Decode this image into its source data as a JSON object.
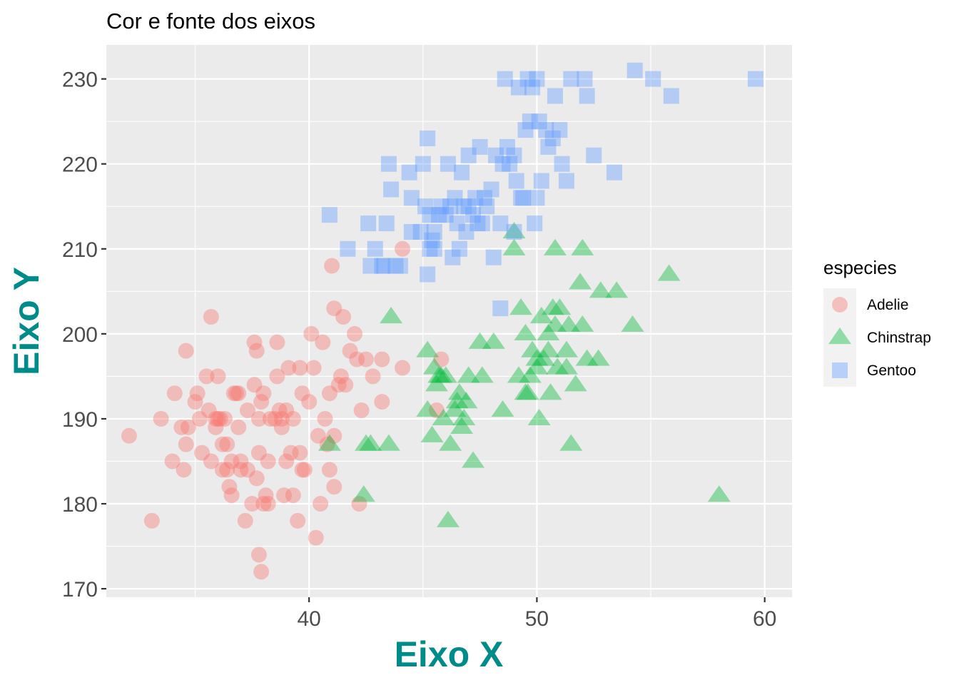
{
  "chart_data": {
    "type": "scatter",
    "title": "Cor e fonte dos eixos",
    "xlabel": "Eixo X",
    "ylabel": "Eixo Y",
    "axis_title_color": "#008B8B",
    "xlim": [
      31.1,
      61.2
    ],
    "ylim": [
      169,
      234
    ],
    "x_ticks": [
      40,
      50,
      60
    ],
    "y_ticks": [
      170,
      180,
      190,
      200,
      210,
      220,
      230
    ],
    "grid": true,
    "legend": {
      "title": "especies",
      "position": "right"
    },
    "series": [
      {
        "name": "Adelie",
        "shape": "circle",
        "color": "#F8766D",
        "points": [
          [
            32.1,
            188
          ],
          [
            33.1,
            178
          ],
          [
            33.5,
            190
          ],
          [
            34.0,
            185
          ],
          [
            34.1,
            193
          ],
          [
            34.5,
            184
          ],
          [
            34.6,
            187
          ],
          [
            34.6,
            198
          ],
          [
            34.7,
            189
          ],
          [
            35.0,
            192
          ],
          [
            35.1,
            193
          ],
          [
            35.2,
            190
          ],
          [
            35.3,
            186
          ],
          [
            35.5,
            195
          ],
          [
            35.6,
            191
          ],
          [
            35.7,
            202
          ],
          [
            35.7,
            185
          ],
          [
            35.9,
            189
          ],
          [
            36.0,
            195
          ],
          [
            36.0,
            190
          ],
          [
            36.2,
            187
          ],
          [
            36.2,
            184
          ],
          [
            36.3,
            190
          ],
          [
            36.4,
            184
          ],
          [
            36.5,
            182
          ],
          [
            36.6,
            185
          ],
          [
            36.6,
            181
          ],
          [
            36.7,
            193
          ],
          [
            36.8,
            193
          ],
          [
            36.9,
            189
          ],
          [
            37.0,
            185
          ],
          [
            37.2,
            178
          ],
          [
            37.3,
            191
          ],
          [
            37.3,
            184
          ],
          [
            37.5,
            180
          ],
          [
            37.6,
            199
          ],
          [
            37.6,
            194
          ],
          [
            37.7,
            183
          ],
          [
            37.7,
            198
          ],
          [
            37.8,
            190
          ],
          [
            37.8,
            174
          ],
          [
            37.9,
            172
          ],
          [
            38.0,
            193
          ],
          [
            38.1,
            181
          ],
          [
            38.2,
            185
          ],
          [
            38.3,
            190
          ],
          [
            38.5,
            190
          ],
          [
            38.6,
            199
          ],
          [
            38.7,
            191
          ],
          [
            38.8,
            190
          ],
          [
            38.9,
            181
          ],
          [
            39.0,
            185
          ],
          [
            39.1,
            196
          ],
          [
            39.2,
            186
          ],
          [
            39.3,
            190
          ],
          [
            39.5,
            178
          ],
          [
            39.6,
            186
          ],
          [
            39.7,
            193
          ],
          [
            39.8,
            184
          ],
          [
            40.0,
            192
          ],
          [
            40.2,
            196
          ],
          [
            40.3,
            176
          ],
          [
            40.5,
            180
          ],
          [
            40.6,
            199
          ],
          [
            40.8,
            187
          ],
          [
            40.9,
            184
          ],
          [
            41.0,
            208
          ],
          [
            41.1,
            182
          ],
          [
            41.1,
            203
          ],
          [
            41.3,
            194
          ],
          [
            41.5,
            202
          ],
          [
            41.8,
            198
          ],
          [
            42.0,
            200
          ],
          [
            42.2,
            180
          ],
          [
            42.3,
            191
          ],
          [
            42.5,
            197
          ],
          [
            42.8,
            195
          ],
          [
            43.2,
            197
          ],
          [
            43.2,
            192
          ],
          [
            44.1,
            196
          ],
          [
            44.1,
            210
          ],
          [
            45.6,
            191
          ],
          [
            45.8,
            197
          ],
          [
            41.4,
            195
          ],
          [
            40.1,
            200
          ],
          [
            39.6,
            196
          ],
          [
            38.8,
            189
          ],
          [
            37.9,
            192
          ],
          [
            36.9,
            193
          ],
          [
            35.9,
            190
          ],
          [
            34.4,
            189
          ],
          [
            39.0,
            191
          ],
          [
            40.7,
            190
          ],
          [
            41.1,
            188
          ],
          [
            42.1,
            197
          ],
          [
            37.0,
            184
          ],
          [
            38.2,
            180
          ],
          [
            39.3,
            181
          ],
          [
            40.4,
            188
          ],
          [
            41.6,
            194
          ],
          [
            36.4,
            187
          ],
          [
            37.8,
            186
          ],
          [
            38.6,
            195
          ],
          [
            39.7,
            184
          ],
          [
            38.0,
            180
          ],
          [
            36.1,
            190
          ],
          [
            40.9,
            193
          ]
        ]
      },
      {
        "name": "Chinstrap",
        "shape": "triangle",
        "color": "#00BA38",
        "points": [
          [
            40.9,
            187
          ],
          [
            42.4,
            181
          ],
          [
            42.5,
            187
          ],
          [
            42.7,
            187
          ],
          [
            43.5,
            187
          ],
          [
            43.6,
            202
          ],
          [
            45.2,
            198
          ],
          [
            45.2,
            191
          ],
          [
            45.4,
            188
          ],
          [
            45.5,
            196
          ],
          [
            45.6,
            194
          ],
          [
            45.7,
            195
          ],
          [
            45.9,
            190
          ],
          [
            46.1,
            178
          ],
          [
            46.2,
            187
          ],
          [
            46.4,
            191
          ],
          [
            46.6,
            193
          ],
          [
            46.8,
            190
          ],
          [
            46.9,
            192
          ],
          [
            47.0,
            195
          ],
          [
            47.2,
            185
          ],
          [
            47.5,
            199
          ],
          [
            47.6,
            195
          ],
          [
            48.1,
            199
          ],
          [
            48.5,
            191
          ],
          [
            49.0,
            212
          ],
          [
            49.0,
            210
          ],
          [
            49.2,
            195
          ],
          [
            49.3,
            203
          ],
          [
            49.5,
            200
          ],
          [
            49.6,
            193
          ],
          [
            49.7,
            195
          ],
          [
            49.8,
            198
          ],
          [
            50.0,
            196
          ],
          [
            50.1,
            190
          ],
          [
            50.2,
            202
          ],
          [
            50.3,
            197
          ],
          [
            50.5,
            200
          ],
          [
            50.6,
            193
          ],
          [
            50.7,
            203
          ],
          [
            50.8,
            201
          ],
          [
            50.9,
            196
          ],
          [
            51.0,
            203
          ],
          [
            51.3,
            198
          ],
          [
            51.4,
            201
          ],
          [
            51.5,
            187
          ],
          [
            51.7,
            194
          ],
          [
            52.0,
            210
          ],
          [
            52.0,
            201
          ],
          [
            52.2,
            197
          ],
          [
            52.7,
            197
          ],
          [
            52.8,
            205
          ],
          [
            53.5,
            205
          ],
          [
            54.2,
            201
          ],
          [
            55.8,
            207
          ],
          [
            58.0,
            181
          ],
          [
            50.8,
            210
          ],
          [
            50.5,
            198
          ],
          [
            51.9,
            206
          ],
          [
            45.8,
            195
          ],
          [
            46.5,
            192
          ],
          [
            49.5,
            193
          ],
          [
            50.0,
            197
          ],
          [
            51.3,
            196
          ],
          [
            46.0,
            195
          ],
          [
            46.7,
            189
          ]
        ]
      },
      {
        "name": "Gentoo",
        "shape": "square",
        "color": "#619CFF",
        "points": [
          [
            40.9,
            214
          ],
          [
            41.7,
            210
          ],
          [
            42.6,
            213
          ],
          [
            42.7,
            208
          ],
          [
            42.9,
            210
          ],
          [
            43.2,
            208
          ],
          [
            43.3,
            208
          ],
          [
            43.4,
            213
          ],
          [
            43.5,
            220
          ],
          [
            43.6,
            217
          ],
          [
            43.8,
            208
          ],
          [
            44.0,
            208
          ],
          [
            44.4,
            219
          ],
          [
            44.5,
            216
          ],
          [
            44.9,
            212
          ],
          [
            45.0,
            220
          ],
          [
            45.1,
            215
          ],
          [
            45.2,
            223
          ],
          [
            45.2,
            207
          ],
          [
            45.3,
            210
          ],
          [
            45.4,
            211
          ],
          [
            45.5,
            212
          ],
          [
            45.5,
            210
          ],
          [
            45.7,
            214
          ],
          [
            45.8,
            215
          ],
          [
            46.1,
            220
          ],
          [
            46.2,
            215
          ],
          [
            46.3,
            209
          ],
          [
            46.4,
            216
          ],
          [
            46.5,
            213
          ],
          [
            46.6,
            210
          ],
          [
            46.7,
            219
          ],
          [
            46.8,
            215
          ],
          [
            46.9,
            212
          ],
          [
            47.0,
            215
          ],
          [
            47.2,
            214
          ],
          [
            47.3,
            216
          ],
          [
            47.5,
            222
          ],
          [
            47.6,
            213
          ],
          [
            47.7,
            216
          ],
          [
            47.8,
            215
          ],
          [
            48.1,
            209
          ],
          [
            48.2,
            221
          ],
          [
            48.4,
            213
          ],
          [
            48.5,
            220
          ],
          [
            48.6,
            230
          ],
          [
            48.7,
            222
          ],
          [
            48.8,
            220
          ],
          [
            49.0,
            221
          ],
          [
            49.1,
            218
          ],
          [
            49.2,
            229
          ],
          [
            49.3,
            216
          ],
          [
            49.4,
            216
          ],
          [
            49.5,
            224
          ],
          [
            49.6,
            230
          ],
          [
            49.7,
            225
          ],
          [
            49.8,
            229
          ],
          [
            49.9,
            213
          ],
          [
            50.0,
            230
          ],
          [
            50.1,
            225
          ],
          [
            50.2,
            218
          ],
          [
            50.4,
            224
          ],
          [
            50.5,
            222
          ],
          [
            50.7,
            223
          ],
          [
            50.8,
            228
          ],
          [
            51.1,
            220
          ],
          [
            51.3,
            218
          ],
          [
            51.5,
            230
          ],
          [
            52.1,
            230
          ],
          [
            52.2,
            228
          ],
          [
            52.5,
            221
          ],
          [
            53.4,
            219
          ],
          [
            54.3,
            231
          ],
          [
            55.1,
            230
          ],
          [
            55.9,
            228
          ],
          [
            59.6,
            230
          ],
          [
            48.4,
            203
          ],
          [
            47.4,
            213
          ],
          [
            46.0,
            214
          ],
          [
            45.3,
            214
          ],
          [
            49.0,
            212
          ],
          [
            50.0,
            216
          ],
          [
            51.0,
            224
          ],
          [
            47.0,
            221
          ],
          [
            44.5,
            212
          ],
          [
            48.0,
            217
          ]
        ]
      }
    ]
  }
}
